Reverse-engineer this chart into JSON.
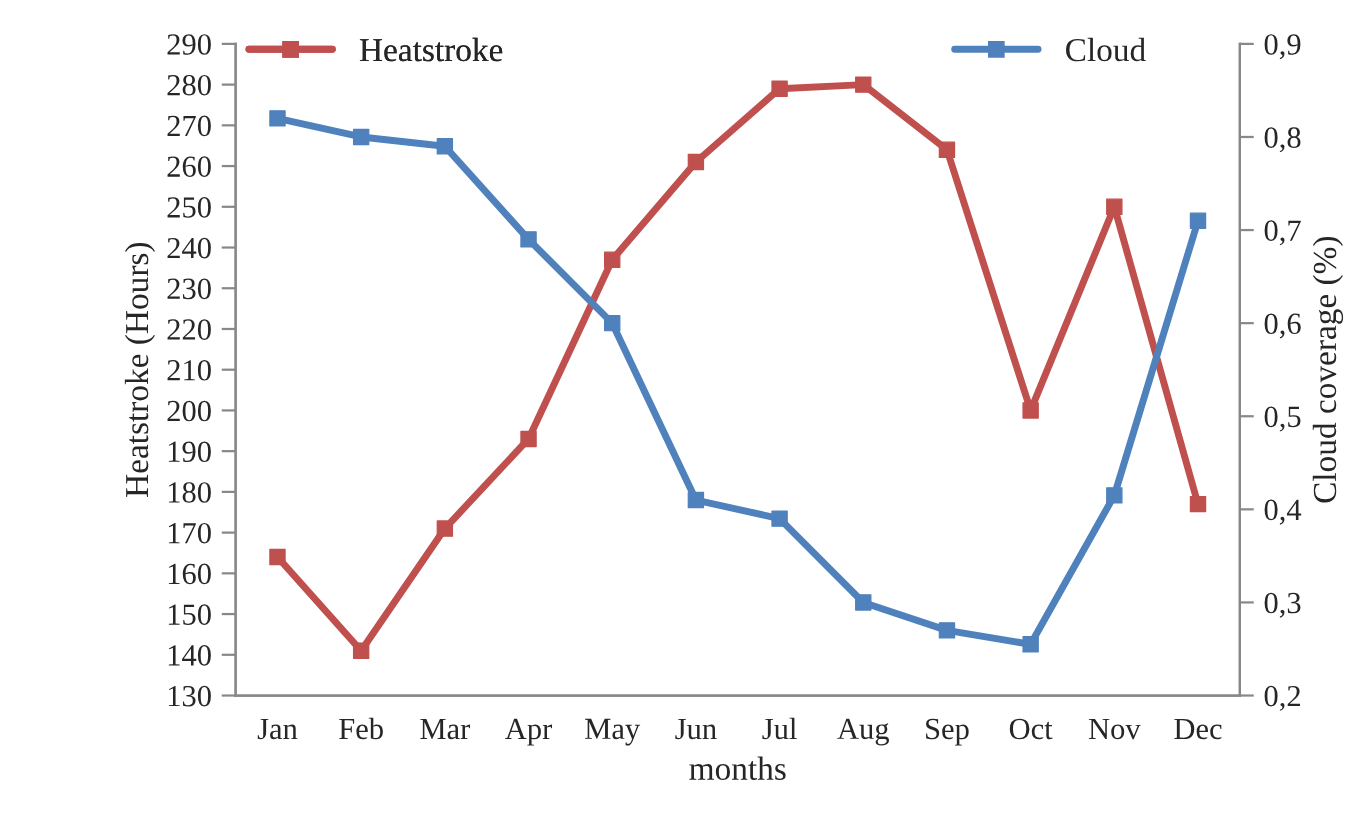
{
  "chart_data": {
    "type": "line",
    "xlabel": "months",
    "ylabel": "Heatstroke (Hours)",
    "y2label": "Cloud coverage (%)",
    "categories": [
      "Jan",
      "Feb",
      "Mar",
      "Apr",
      "May",
      "Jun",
      "Jul",
      "Aug",
      "Sep",
      "Oct",
      "Nov",
      "Dec"
    ],
    "series": [
      {
        "name": "Heatstroke",
        "color": "#c0504d",
        "values": [
          164,
          141,
          171,
          193,
          237,
          261,
          279,
          280,
          264,
          200,
          250,
          177
        ]
      },
      {
        "name": "Cloud",
        "color": "#4f81bd",
        "axis": "y2",
        "values": [
          0.82,
          0.8,
          0.79,
          0.69,
          0.6,
          0.41,
          0.39,
          0.3,
          0.27,
          0.255,
          0.415,
          0.71
        ]
      }
    ],
    "ylim": [
      130,
      290
    ],
    "yticks": [
      130,
      140,
      150,
      160,
      170,
      180,
      190,
      200,
      210,
      220,
      230,
      240,
      250,
      260,
      270,
      280,
      290
    ],
    "y2lim": [
      0.2,
      0.9
    ],
    "y2ticks": [
      {
        "value": 0.2,
        "label": "0,2"
      },
      {
        "value": 0.3,
        "label": "0,3"
      },
      {
        "value": 0.4,
        "label": "0,4"
      },
      {
        "value": 0.5,
        "label": "0,5"
      },
      {
        "value": 0.6,
        "label": "0,6"
      },
      {
        "value": 0.7,
        "label": "0,7"
      },
      {
        "value": 0.8,
        "label": "0,8"
      },
      {
        "value": 0.9,
        "label": "0,9"
      }
    ],
    "marker": "square",
    "line_style": "solid",
    "grid": false,
    "legend": "top"
  }
}
